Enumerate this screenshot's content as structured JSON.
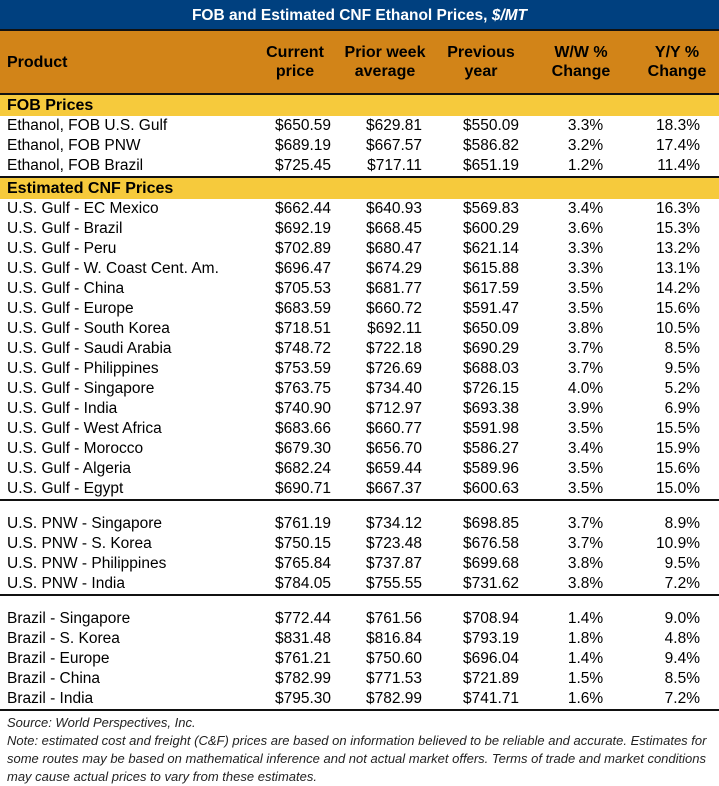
{
  "title": "FOB and Estimated CNF Ethanol Prices,",
  "title_unit": "$/MT",
  "columns": [
    "Product",
    "Current price",
    "Prior week average",
    "Previous year",
    "W/W % Change",
    "Y/Y % Change"
  ],
  "colors": {
    "title_bg": "#00407F",
    "header_bg": "#D28418",
    "band_bg": "#F6CA3C"
  },
  "sections": [
    {
      "label": "FOB Prices",
      "groups": [
        [
          [
            "Ethanol, FOB U.S. Gulf",
            "$650.59",
            "$629.81",
            "$550.09",
            "3.3%",
            "18.3%"
          ],
          [
            "Ethanol, FOB PNW",
            "$689.19",
            "$667.57",
            "$586.82",
            "3.2%",
            "17.4%"
          ],
          [
            "Ethanol, FOB Brazil",
            "$725.45",
            "$717.11",
            "$651.19",
            "1.2%",
            "11.4%"
          ]
        ]
      ]
    },
    {
      "label": "Estimated CNF Prices",
      "groups": [
        [
          [
            "U.S. Gulf - EC Mexico",
            "$662.44",
            "$640.93",
            "$569.83",
            "3.4%",
            "16.3%"
          ],
          [
            "U.S. Gulf - Brazil",
            "$692.19",
            "$668.45",
            "$600.29",
            "3.6%",
            "15.3%"
          ],
          [
            "U.S. Gulf - Peru",
            "$702.89",
            "$680.47",
            "$621.14",
            "3.3%",
            "13.2%"
          ],
          [
            "U.S. Gulf - W. Coast Cent. Am.",
            "$696.47",
            "$674.29",
            "$615.88",
            "3.3%",
            "13.1%"
          ],
          [
            "U.S. Gulf - China",
            "$705.53",
            "$681.77",
            "$617.59",
            "3.5%",
            "14.2%"
          ],
          [
            "U.S. Gulf - Europe",
            "$683.59",
            "$660.72",
            "$591.47",
            "3.5%",
            "15.6%"
          ],
          [
            "U.S. Gulf - South Korea",
            "$718.51",
            "$692.11",
            "$650.09",
            "3.8%",
            "10.5%"
          ],
          [
            "U.S. Gulf - Saudi Arabia",
            "$748.72",
            "$722.18",
            "$690.29",
            "3.7%",
            "8.5%"
          ],
          [
            "U.S. Gulf - Philippines",
            "$753.59",
            "$726.69",
            "$688.03",
            "3.7%",
            "9.5%"
          ],
          [
            "U.S. Gulf - Singapore",
            "$763.75",
            "$734.40",
            "$726.15",
            "4.0%",
            "5.2%"
          ],
          [
            "U.S. Gulf - India",
            "$740.90",
            "$712.97",
            "$693.38",
            "3.9%",
            "6.9%"
          ],
          [
            "U.S. Gulf - West Africa",
            "$683.66",
            "$660.77",
            "$591.98",
            "3.5%",
            "15.5%"
          ],
          [
            "U.S. Gulf - Morocco",
            "$679.30",
            "$656.70",
            "$586.27",
            "3.4%",
            "15.9%"
          ],
          [
            "U.S. Gulf - Algeria",
            "$682.24",
            "$659.44",
            "$589.96",
            "3.5%",
            "15.6%"
          ],
          [
            "U.S. Gulf - Egypt",
            "$690.71",
            "$667.37",
            "$600.63",
            "3.5%",
            "15.0%"
          ]
        ],
        [
          [
            "U.S. PNW - Singapore",
            "$761.19",
            "$734.12",
            "$698.85",
            "3.7%",
            "8.9%"
          ],
          [
            "U.S. PNW - S. Korea",
            "$750.15",
            "$723.48",
            "$676.58",
            "3.7%",
            "10.9%"
          ],
          [
            "U.S. PNW - Philippines",
            "$765.84",
            "$737.87",
            "$699.68",
            "3.8%",
            "9.5%"
          ],
          [
            "U.S. PNW - India",
            "$784.05",
            "$755.55",
            "$731.62",
            "3.8%",
            "7.2%"
          ]
        ],
        [
          [
            "Brazil - Singapore",
            "$772.44",
            "$761.56",
            "$708.94",
            "1.4%",
            "9.0%"
          ],
          [
            "Brazil - S. Korea",
            "$831.48",
            "$816.84",
            "$793.19",
            "1.8%",
            "4.8%"
          ],
          [
            "Brazil - Europe",
            "$761.21",
            "$750.60",
            "$696.04",
            "1.4%",
            "9.4%"
          ],
          [
            "Brazil - China",
            "$782.99",
            "$771.53",
            "$721.89",
            "1.5%",
            "8.5%"
          ],
          [
            "Brazil - India",
            "$795.30",
            "$782.99",
            "$741.71",
            "1.6%",
            "7.2%"
          ]
        ]
      ]
    }
  ],
  "footer": {
    "source": "Source: World Perspectives, Inc.",
    "note": "Note: estimated cost and freight (C&F) prices are based on information believed to be reliable and accurate. Estimates for some routes may be based on mathematical inference and not actual market offers. Terms of trade and market conditions may cause actual prices to vary from these estimates."
  }
}
